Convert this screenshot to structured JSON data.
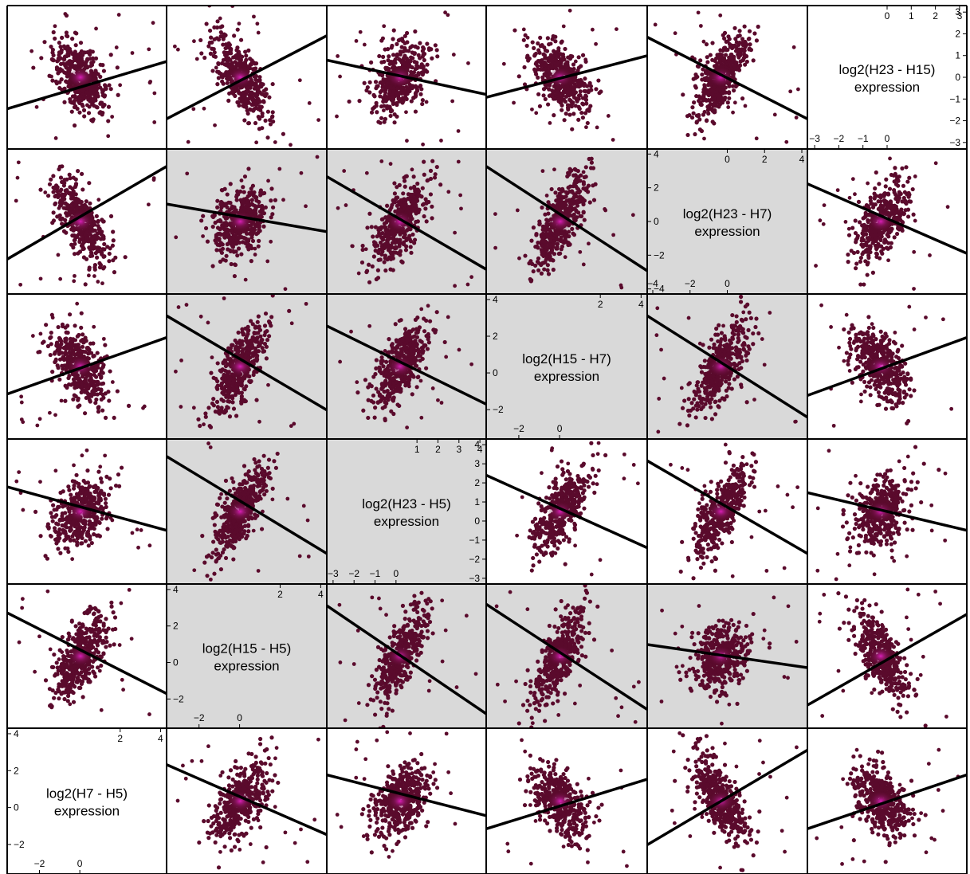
{
  "chart_data": {
    "type": "scatter",
    "layout": "scatterplot-matrix",
    "n_rows": 6,
    "n_cols": 6,
    "colors": {
      "point_low_density": "#5a0a2c",
      "point_high_density": "#e020c0",
      "regression_line": "#000000",
      "highlight_panel_bg": "#d9d9d9",
      "panel_border": "#000000"
    },
    "variables": [
      {
        "id": "H23-H15",
        "label_line1": "log2(H23 - H15)",
        "label_line2": "expression",
        "range": [
          -3.3,
          3.3
        ],
        "axis_ticks_outer": [
          0,
          1,
          2,
          3
        ],
        "axis_ticks_inner": [
          -3,
          -2,
          -1,
          0,
          1,
          2,
          3
        ]
      },
      {
        "id": "H23-H7",
        "label_line1": "log2(H23 - H7)",
        "label_line2": "expression",
        "range": [
          -4.3,
          4.3
        ],
        "axis_ticks_outer": [
          0,
          2,
          4
        ],
        "axis_ticks_inner": [
          -4,
          -2,
          0,
          2,
          4
        ]
      },
      {
        "id": "H15-H7",
        "label_line1": "log2(H15 - H7)",
        "label_line2": "expression",
        "range": [
          -3.6,
          4.3
        ],
        "axis_ticks_outer": [
          2,
          4
        ],
        "axis_ticks_inner": [
          -2,
          0,
          2,
          4
        ]
      },
      {
        "id": "H23-H5",
        "label_line1": "log2(H23 - H5)",
        "label_line2": "expression",
        "range": [
          -3.3,
          4.3
        ],
        "axis_ticks_outer": [
          1,
          2,
          3,
          4
        ],
        "axis_ticks_inner": [
          -3,
          -2,
          -1,
          0,
          1,
          2,
          3,
          4
        ]
      },
      {
        "id": "H15-H5",
        "label_line1": "log2(H15 - H5)",
        "label_line2": "expression",
        "range": [
          -3.6,
          4.3
        ],
        "axis_ticks_outer": [
          2,
          4
        ],
        "axis_ticks_inner": [
          -2,
          0,
          2,
          4
        ]
      },
      {
        "id": "H7-H5",
        "label_line1": "log2(H7 - H5)",
        "label_line2": "expression",
        "range": [
          -3.6,
          4.3
        ],
        "axis_ticks_outer": [
          2,
          4
        ],
        "axis_ticks_inner": [
          -2,
          0,
          2,
          4
        ]
      }
    ],
    "panels": [
      {
        "row": 0,
        "col": 0,
        "highlight": false,
        "line": [
          0.72,
          0.39
        ]
      },
      {
        "row": 0,
        "col": 1,
        "highlight": false,
        "line": [
          0.79,
          0.21
        ]
      },
      {
        "row": 0,
        "col": 2,
        "highlight": false,
        "line": [
          0.38,
          0.62
        ]
      },
      {
        "row": 0,
        "col": 3,
        "highlight": false,
        "line": [
          0.64,
          0.35
        ]
      },
      {
        "row": 0,
        "col": 4,
        "highlight": false,
        "line": [
          0.22,
          0.79
        ]
      },
      {
        "row": 0,
        "col": 5,
        "diagonal": true,
        "var": 0
      },
      {
        "row": 1,
        "col": 0,
        "highlight": false,
        "line": [
          0.76,
          0.12
        ]
      },
      {
        "row": 1,
        "col": 1,
        "highlight": true,
        "line": [
          0.38,
          0.57
        ]
      },
      {
        "row": 1,
        "col": 2,
        "highlight": true,
        "line": [
          0.19,
          0.83
        ]
      },
      {
        "row": 1,
        "col": 3,
        "highlight": true,
        "line": [
          0.12,
          0.84
        ]
      },
      {
        "row": 1,
        "col": 4,
        "diagonal": true,
        "var": 1
      },
      {
        "row": 1,
        "col": 5,
        "highlight": false,
        "line": [
          0.24,
          0.72
        ]
      },
      {
        "row": 2,
        "col": 0,
        "highlight": false,
        "line": [
          0.69,
          0.3
        ]
      },
      {
        "row": 2,
        "col": 1,
        "highlight": true,
        "line": [
          0.15,
          0.8
        ]
      },
      {
        "row": 2,
        "col": 2,
        "highlight": true,
        "line": [
          0.22,
          0.76
        ]
      },
      {
        "row": 2,
        "col": 3,
        "diagonal": true,
        "var": 2
      },
      {
        "row": 2,
        "col": 4,
        "highlight": true,
        "line": [
          0.15,
          0.85
        ]
      },
      {
        "row": 2,
        "col": 5,
        "highlight": false,
        "line": [
          0.7,
          0.3
        ]
      },
      {
        "row": 3,
        "col": 0,
        "highlight": false,
        "line": [
          0.33,
          0.63
        ]
      },
      {
        "row": 3,
        "col": 1,
        "highlight": true,
        "line": [
          0.12,
          0.79
        ]
      },
      {
        "row": 3,
        "col": 3,
        "highlight": false,
        "line": [
          0.25,
          0.75
        ]
      },
      {
        "row": 3,
        "col": 2,
        "diagonal": true,
        "var": 3
      },
      {
        "row": 3,
        "col": 4,
        "highlight": false,
        "line": [
          0.15,
          0.79
        ]
      },
      {
        "row": 3,
        "col": 5,
        "highlight": false,
        "line": [
          0.37,
          0.63
        ]
      },
      {
        "row": 4,
        "col": 0,
        "highlight": false,
        "line": [
          0.2,
          0.76
        ]
      },
      {
        "row": 4,
        "col": 1,
        "diagonal": true,
        "var": 4
      },
      {
        "row": 4,
        "col": 2,
        "highlight": true,
        "line": [
          0.15,
          0.9
        ]
      },
      {
        "row": 4,
        "col": 3,
        "highlight": true,
        "line": [
          0.14,
          0.87
        ]
      },
      {
        "row": 4,
        "col": 4,
        "highlight": true,
        "line": [
          0.42,
          0.58
        ]
      },
      {
        "row": 4,
        "col": 5,
        "highlight": false,
        "line": [
          0.84,
          0.21
        ]
      },
      {
        "row": 5,
        "col": 0,
        "diagonal": true,
        "var": 5
      },
      {
        "row": 5,
        "col": 1,
        "highlight": false,
        "line": [
          0.25,
          0.73
        ]
      },
      {
        "row": 5,
        "col": 2,
        "highlight": false,
        "line": [
          0.32,
          0.6
        ]
      },
      {
        "row": 5,
        "col": 3,
        "highlight": false,
        "line": [
          0.69,
          0.35
        ]
      },
      {
        "row": 5,
        "col": 4,
        "highlight": false,
        "line": [
          0.8,
          0.15
        ]
      },
      {
        "row": 5,
        "col": 5,
        "highlight": false,
        "line": [
          0.69,
          0.32
        ]
      }
    ]
  }
}
